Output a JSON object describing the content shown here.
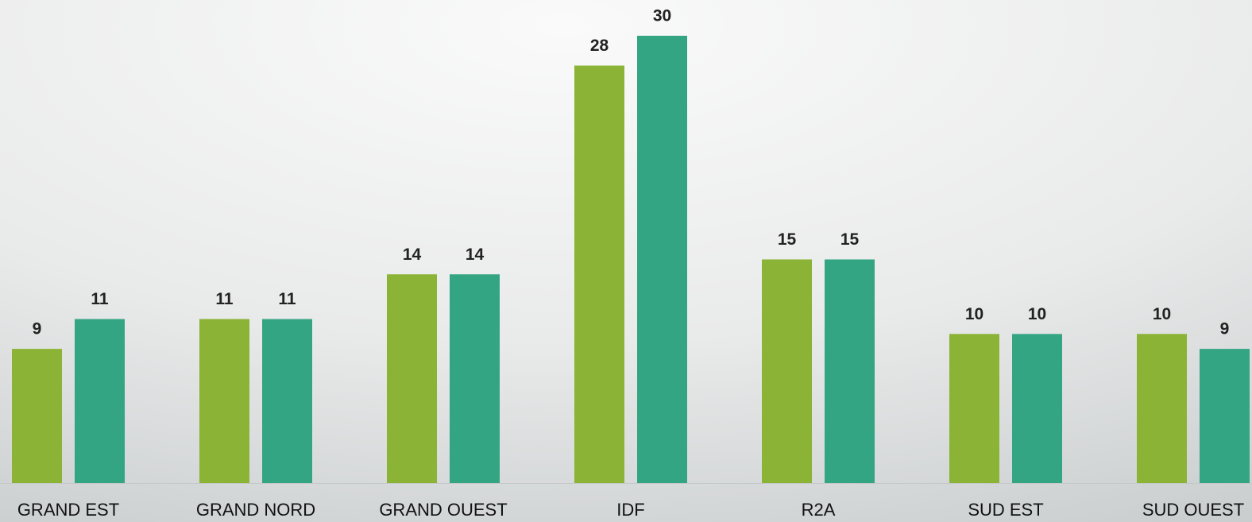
{
  "chart_data": {
    "type": "bar",
    "categories": [
      "GRAND EST",
      "GRAND NORD",
      "GRAND OUEST",
      "IDF",
      "R2A",
      "SUD EST",
      "SUD OUEST"
    ],
    "series": [
      {
        "color": "#8bb335",
        "values": [
          9,
          11,
          14,
          28,
          15,
          10,
          10
        ]
      },
      {
        "color": "#34a583",
        "values": [
          11,
          11,
          14,
          30,
          15,
          10,
          9
        ]
      }
    ],
    "ylim": [
      0,
      30
    ]
  }
}
